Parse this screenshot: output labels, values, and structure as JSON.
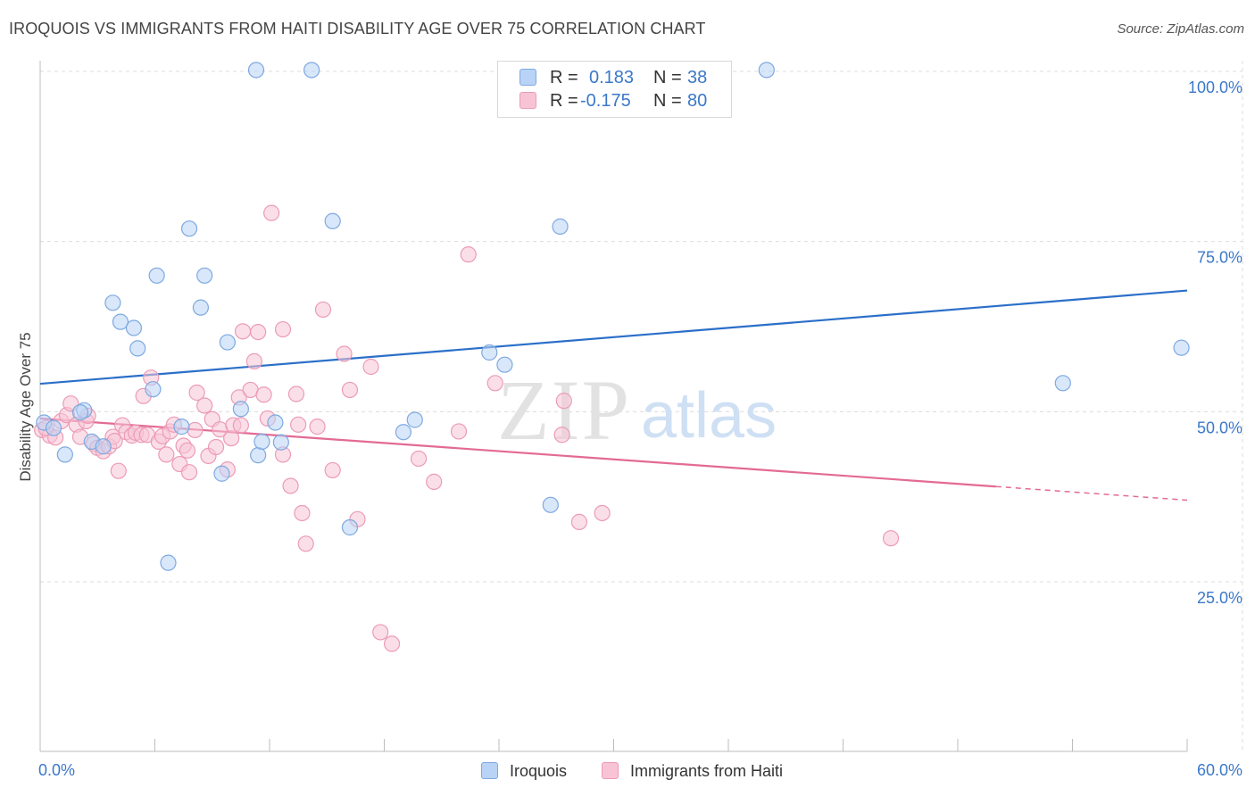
{
  "title": "IROQUOIS VS IMMIGRANTS FROM HAITI DISABILITY AGE OVER 75 CORRELATION CHART",
  "source": "Source: ZipAtlas.com",
  "watermark": {
    "zip": "ZIP",
    "atlas": "atlas"
  },
  "legend": {
    "rows": [
      {
        "r_label": "R =",
        "r_value": "0.183",
        "n_label": "N =",
        "n_value": "38"
      },
      {
        "r_label": "R =",
        "r_value": "-0.175",
        "n_label": "N =",
        "n_value": "80"
      }
    ]
  },
  "bottom_legend": {
    "series1": "Iroquois",
    "series2": "Immigrants from Haiti"
  },
  "colors": {
    "series1_fill": "#b8d3f5",
    "series1_stroke": "#7fa9e0",
    "series1_line": "#2b6fc9",
    "series2_fill": "#f8c4d5",
    "series2_stroke": "#ec9bb6",
    "series2_line": "#e36a94",
    "tick_label": "#3b78c9",
    "grid": "#dcdcdc"
  },
  "chart_data": {
    "type": "scatter",
    "title": "IROQUOIS VS IMMIGRANTS FROM HAITI DISABILITY AGE OVER 75 CORRELATION CHART",
    "xlabel": "",
    "ylabel": "Disability Age Over 75",
    "xlim": [
      0,
      60
    ],
    "ylim": [
      0,
      102
    ],
    "x_tick_labels": [
      "0.0%",
      "60.0%"
    ],
    "y_tick_labels": [
      "25.0%",
      "50.0%",
      "75.0%",
      "100.0%"
    ],
    "y_ticks": [
      25,
      50,
      75,
      100
    ],
    "grid": true,
    "legend_position": "top-center",
    "series": [
      {
        "name": "Iroquois",
        "r": 0.183,
        "n": 38,
        "trend": {
          "x": [
            0,
            60
          ],
          "y": [
            54.1,
            67.8
          ],
          "dashed_from": null
        },
        "points": [
          [
            0.2,
            48.4
          ],
          [
            0.7,
            47.6
          ],
          [
            1.3,
            43.7
          ],
          [
            2.3,
            50.2
          ],
          [
            2.1,
            49.9
          ],
          [
            2.7,
            45.6
          ],
          [
            3.3,
            44.9
          ],
          [
            3.8,
            66.0
          ],
          [
            4.2,
            63.2
          ],
          [
            4.9,
            62.3
          ],
          [
            5.1,
            59.3
          ],
          [
            5.9,
            53.3
          ],
          [
            6.1,
            70.0
          ],
          [
            6.7,
            27.8
          ],
          [
            7.4,
            47.8
          ],
          [
            7.8,
            76.9
          ],
          [
            8.4,
            65.3
          ],
          [
            8.6,
            70.0
          ],
          [
            9.5,
            40.9
          ],
          [
            9.8,
            60.2
          ],
          [
            10.5,
            50.4
          ],
          [
            11.3,
            100.2
          ],
          [
            11.4,
            43.6
          ],
          [
            11.6,
            45.6
          ],
          [
            12.3,
            48.4
          ],
          [
            12.6,
            45.5
          ],
          [
            14.2,
            100.2
          ],
          [
            15.3,
            78.0
          ],
          [
            16.2,
            33.0
          ],
          [
            19.0,
            47.0
          ],
          [
            19.6,
            48.8
          ],
          [
            23.5,
            58.7
          ],
          [
            24.3,
            56.9
          ],
          [
            26.7,
            36.3
          ],
          [
            27.2,
            77.2
          ],
          [
            38.0,
            100.2
          ],
          [
            53.5,
            54.2
          ],
          [
            59.7,
            59.4
          ]
        ]
      },
      {
        "name": "Immigrants from Haiti",
        "r": -0.175,
        "n": 80,
        "trend": {
          "x": [
            0,
            50
          ],
          "y": [
            49.0,
            39.0
          ],
          "dashed_from": 50,
          "dashed_to": [
            60,
            37.0
          ]
        },
        "points": [
          [
            0.1,
            47.3
          ],
          [
            0.5,
            46.5
          ],
          [
            0.8,
            46.2
          ],
          [
            1.1,
            48.6
          ],
          [
            1.4,
            49.5
          ],
          [
            1.6,
            51.2
          ],
          [
            1.9,
            48.1
          ],
          [
            2.1,
            46.3
          ],
          [
            2.4,
            48.6
          ],
          [
            2.5,
            49.4
          ],
          [
            2.8,
            45.3
          ],
          [
            3.0,
            44.7
          ],
          [
            3.3,
            44.2
          ],
          [
            3.6,
            44.9
          ],
          [
            3.8,
            46.3
          ],
          [
            3.9,
            45.7
          ],
          [
            4.1,
            41.3
          ],
          [
            4.3,
            48.0
          ],
          [
            4.5,
            47.0
          ],
          [
            4.8,
            46.5
          ],
          [
            5.0,
            46.9
          ],
          [
            5.3,
            46.6
          ],
          [
            5.4,
            52.3
          ],
          [
            5.6,
            46.6
          ],
          [
            5.8,
            55.0
          ],
          [
            6.2,
            45.6
          ],
          [
            6.4,
            46.4
          ],
          [
            6.6,
            43.7
          ],
          [
            6.8,
            47.1
          ],
          [
            7.0,
            48.1
          ],
          [
            7.3,
            42.3
          ],
          [
            7.5,
            45.0
          ],
          [
            7.7,
            44.3
          ],
          [
            7.8,
            41.1
          ],
          [
            8.1,
            47.3
          ],
          [
            8.2,
            52.8
          ],
          [
            8.6,
            50.9
          ],
          [
            8.8,
            43.5
          ],
          [
            9.0,
            48.9
          ],
          [
            9.2,
            44.8
          ],
          [
            9.4,
            47.4
          ],
          [
            9.8,
            41.5
          ],
          [
            10.0,
            46.1
          ],
          [
            10.1,
            48.0
          ],
          [
            10.4,
            52.1
          ],
          [
            10.5,
            48.0
          ],
          [
            10.6,
            61.8
          ],
          [
            11.0,
            53.2
          ],
          [
            11.2,
            57.4
          ],
          [
            11.4,
            61.7
          ],
          [
            11.7,
            52.5
          ],
          [
            11.9,
            49.0
          ],
          [
            12.1,
            79.2
          ],
          [
            12.7,
            62.1
          ],
          [
            12.7,
            43.7
          ],
          [
            13.1,
            39.1
          ],
          [
            13.4,
            52.6
          ],
          [
            13.5,
            48.1
          ],
          [
            13.7,
            35.1
          ],
          [
            13.9,
            30.6
          ],
          [
            14.5,
            47.8
          ],
          [
            14.8,
            65.0
          ],
          [
            15.3,
            41.4
          ],
          [
            15.9,
            58.5
          ],
          [
            16.2,
            53.2
          ],
          [
            16.6,
            34.2
          ],
          [
            17.3,
            56.6
          ],
          [
            17.8,
            17.6
          ],
          [
            18.4,
            15.9
          ],
          [
            19.8,
            43.1
          ],
          [
            20.6,
            39.7
          ],
          [
            22.4,
            73.1
          ],
          [
            21.9,
            47.1
          ],
          [
            23.8,
            54.2
          ],
          [
            27.3,
            46.6
          ],
          [
            27.4,
            51.6
          ],
          [
            28.2,
            33.8
          ],
          [
            29.4,
            35.1
          ],
          [
            44.5,
            31.4
          ],
          [
            0.3,
            47.6
          ]
        ]
      }
    ]
  }
}
